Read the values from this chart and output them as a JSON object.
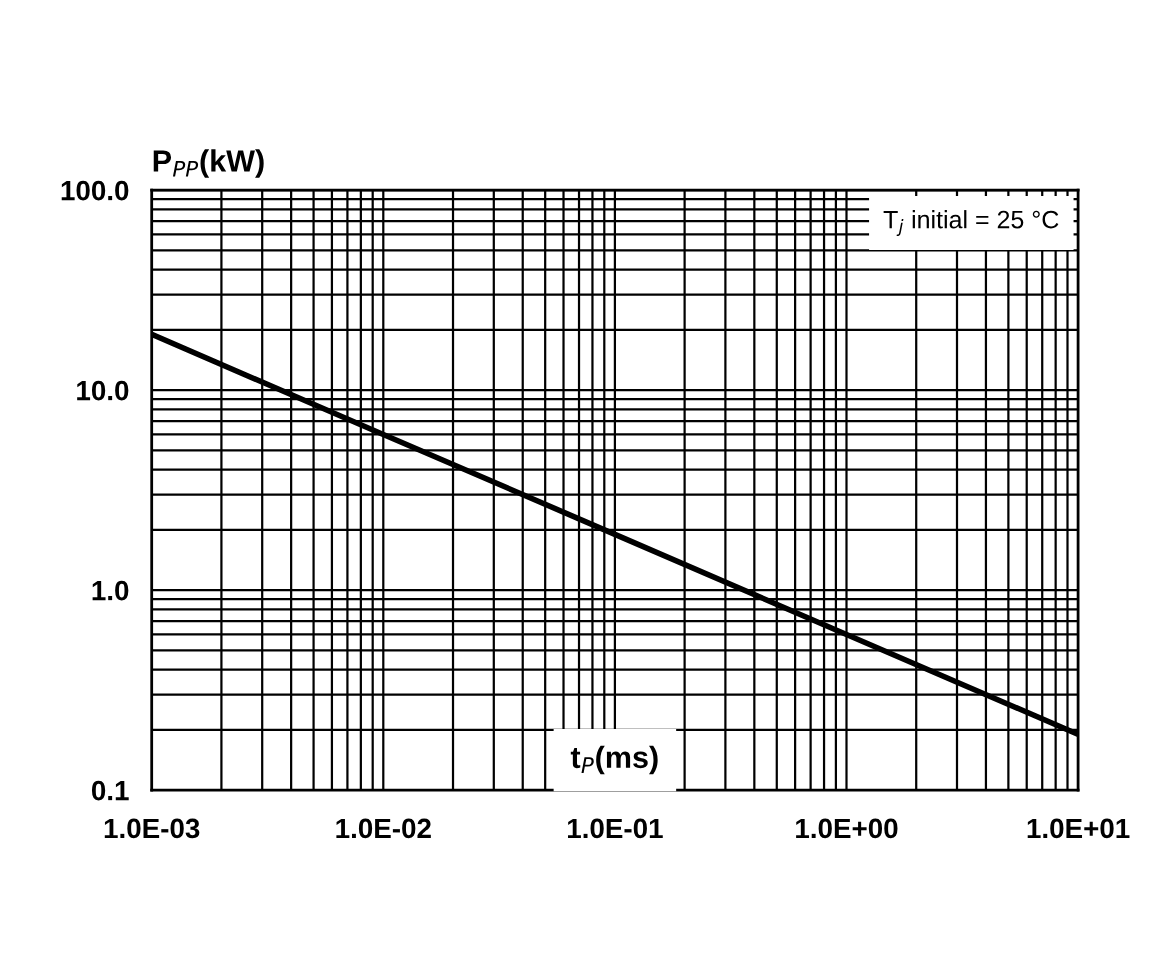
{
  "chart_data": {
    "type": "line",
    "xlabel": "t$_{P}$(ms)",
    "ylabel": "P$_{PP}$(kW)",
    "annotations": [
      "T$_{j}$ initial = 25 °C"
    ],
    "x": [
      0.001,
      0.01,
      0.1,
      1,
      10
    ],
    "series": [
      {
        "color": "#000000",
        "values": [
          19,
          6,
          1.9,
          0.6,
          0.19
        ]
      }
    ],
    "log": "xy",
    "grid": true,
    "xlim": [
      0.001,
      10
    ],
    "ylim": [
      0.1,
      100
    ],
    "xticks": [
      {
        "value": 0.001,
        "label": "1.0E-03"
      },
      {
        "value": 0.01,
        "label": "1.0E-02"
      },
      {
        "value": 0.1,
        "label": "1.0E-01"
      },
      {
        "value": 1,
        "label": "1.0E+00"
      },
      {
        "value": 10,
        "label": "1.0E+01"
      }
    ],
    "yticks": [
      0.1,
      {
        "value": 1,
        "label": "1.0"
      },
      {
        "value": 10,
        "label": "10.0"
      },
      {
        "value": 100,
        "label": "100.0"
      }
    ]
  }
}
